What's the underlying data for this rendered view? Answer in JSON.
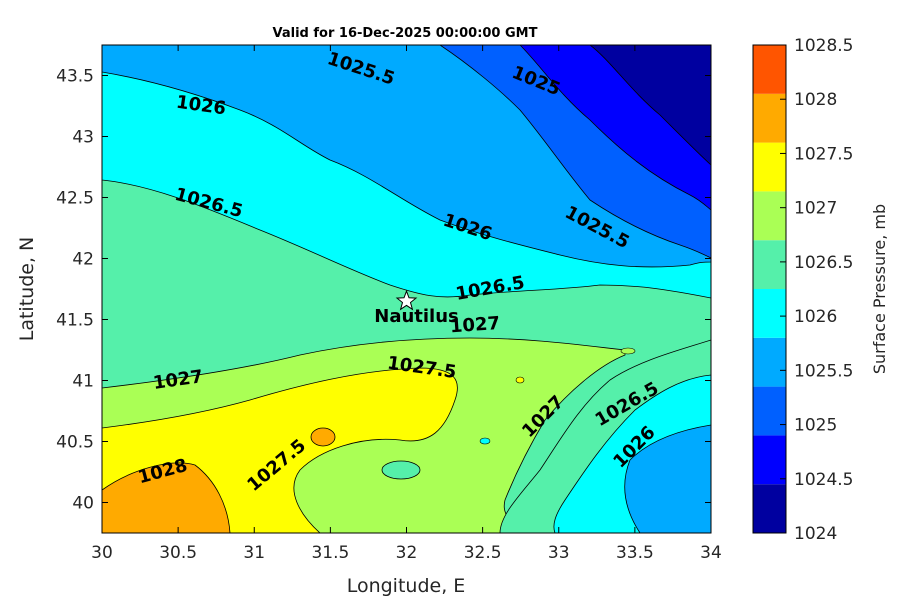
{
  "chart_data": {
    "type": "contour",
    "title": "Valid for 16-Dec-2025 00:00:00 GMT",
    "xlabel": "Longitude, E",
    "ylabel": "Latitude, N",
    "xlim": [
      30,
      34
    ],
    "ylim": [
      39.75,
      43.75
    ],
    "x_ticks": [
      30,
      30.5,
      31,
      31.5,
      32,
      32.5,
      33,
      33.5,
      34
    ],
    "x_tick_labels": [
      "30",
      "30.5",
      "31",
      "31.5",
      "32",
      "32.5",
      "33",
      "33.5",
      "34"
    ],
    "y_ticks": [
      40,
      40.5,
      41,
      41.5,
      42,
      42.5,
      43,
      43.5
    ],
    "y_tick_labels": [
      "40",
      "40.5",
      "41",
      "41.5",
      "42",
      "42.5",
      "43",
      "43.5"
    ],
    "colorbar": {
      "label": "Surface Pressure, mb",
      "levels": [
        1024,
        1024.5,
        1025,
        1025.5,
        1026,
        1026.5,
        1027,
        1027.5,
        1028,
        1028.5
      ],
      "tick_labels": [
        "1024",
        "1024.5",
        "1025",
        "1025.5",
        "1026",
        "1026.5",
        "1027",
        "1027.5",
        "1028",
        "1028.5"
      ],
      "colors": [
        "#0000a0",
        "#0000ff",
        "#0060ff",
        "#00aaff",
        "#00ffff",
        "#55f0aa",
        "#aaff55",
        "#ffff00",
        "#ffaa00",
        "#ff5500"
      ]
    },
    "contour_labels": [
      {
        "text": "1025.5",
        "lon": 31.7,
        "lat": 43.55
      },
      {
        "text": "1025",
        "lon": 32.85,
        "lat": 43.45
      },
      {
        "text": "1026",
        "lon": 30.65,
        "lat": 43.25
      },
      {
        "text": "1026.5",
        "lon": 30.7,
        "lat": 42.45
      },
      {
        "text": "1026",
        "lon": 32.4,
        "lat": 42.25
      },
      {
        "text": "1025.5",
        "lon": 33.25,
        "lat": 42.25
      },
      {
        "text": "1026.5",
        "lon": 32.55,
        "lat": 41.75
      },
      {
        "text": "1027",
        "lon": 32.45,
        "lat": 41.45
      },
      {
        "text": "1027",
        "lon": 30.5,
        "lat": 41.0
      },
      {
        "text": "1027.5",
        "lon": 32.1,
        "lat": 41.1
      },
      {
        "text": "1026.5",
        "lon": 33.45,
        "lat": 40.8
      },
      {
        "text": "1027",
        "lon": 32.9,
        "lat": 40.7
      },
      {
        "text": "1026",
        "lon": 33.5,
        "lat": 40.45
      },
      {
        "text": "1028",
        "lon": 30.4,
        "lat": 40.25
      },
      {
        "text": "1027.5",
        "lon": 31.15,
        "lat": 40.3
      }
    ],
    "marker": {
      "name": "Nautilus",
      "lon": 32.0,
      "lat": 41.65
    }
  }
}
